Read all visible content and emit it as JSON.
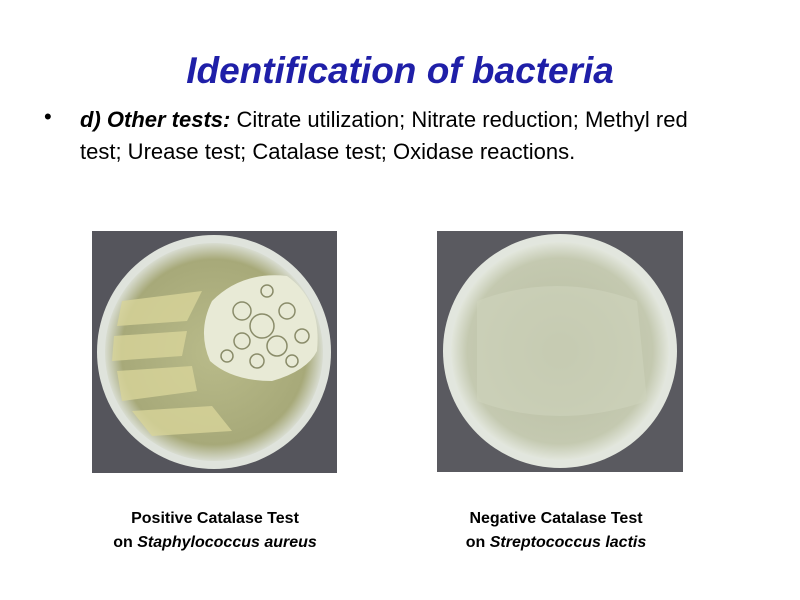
{
  "title": "Identification of bacteria",
  "bullet": {
    "label": "d) Other tests:",
    "text": "Citrate utilization; Nitrate reduction; Methyl red test; Urease test; Catalase test; Oxidase reactions."
  },
  "figures": [
    {
      "line1": "Positive Catalase Test",
      "prefix": "on",
      "species": "Staphylococcus aureus"
    },
    {
      "line1": "Negative Catalase Test",
      "prefix": "on",
      "species": "Streptococcus lactis"
    }
  ]
}
